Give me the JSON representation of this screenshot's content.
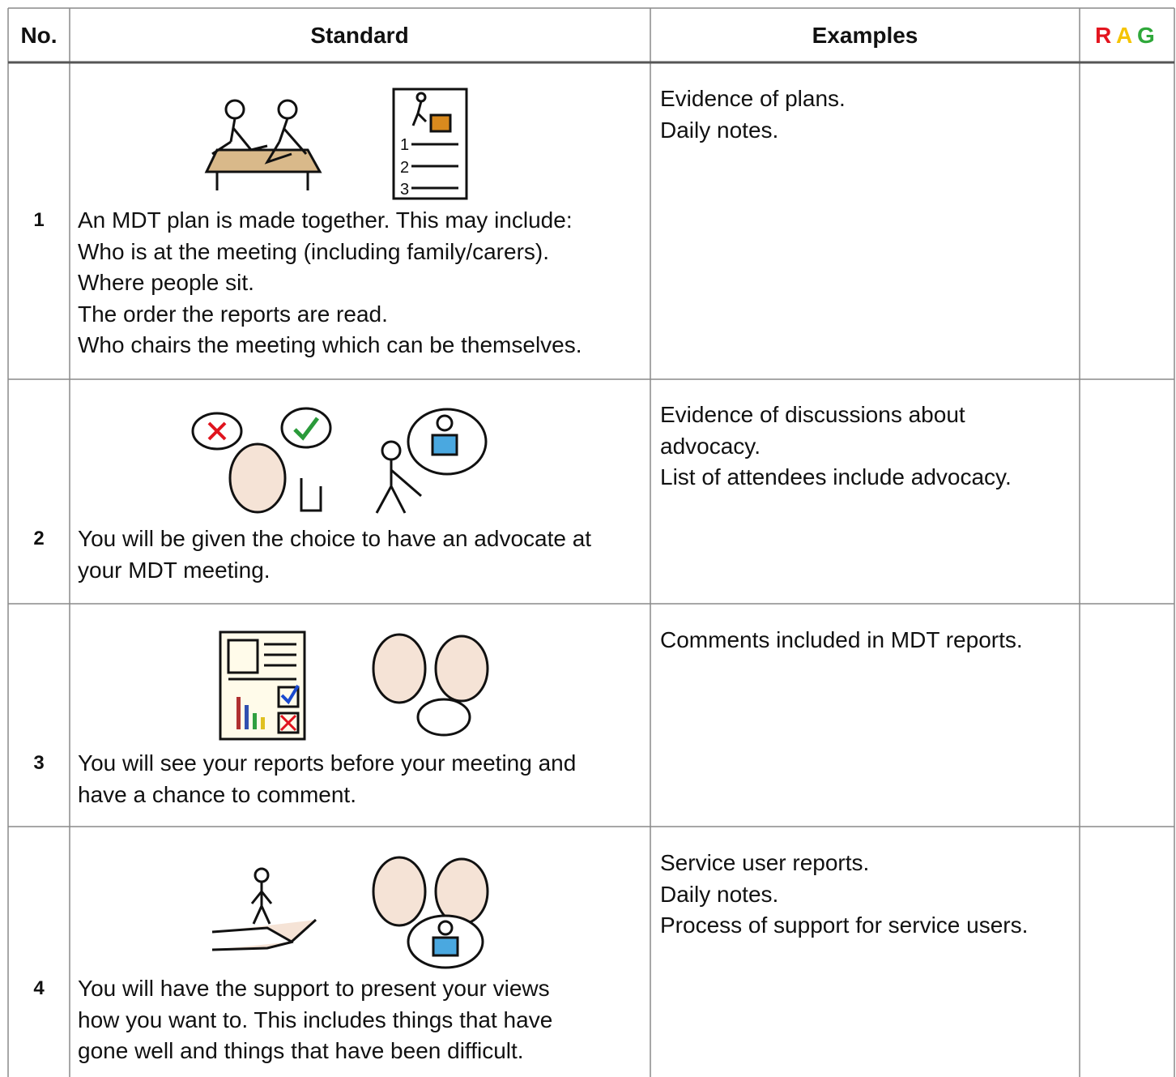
{
  "table": {
    "header": {
      "no": "No.",
      "standard": "Standard",
      "examples": "Examples",
      "rag": [
        "R",
        "A",
        "G"
      ]
    },
    "rows": [
      {
        "no": "1",
        "standard": [
          "An MDT plan is made together. This may include:",
          "Who is at the meeting (including family/carers).",
          "Where people sit.",
          "The order the reports are read.",
          "Who chairs the meeting which can be themselves."
        ],
        "examples": [
          "Evidence of plans.",
          "Daily notes."
        ]
      },
      {
        "no": "2",
        "standard": [
          "You will be given the choice to have an advocate at",
          "your MDT meeting."
        ],
        "examples": [
          "Evidence of discussions about",
          "advocacy.",
          "List of attendees include advocacy."
        ]
      },
      {
        "no": "3",
        "standard": [
          "You will see your reports before your meeting and",
          "have a chance to comment."
        ],
        "examples": [
          "Comments included in MDT reports."
        ]
      },
      {
        "no": "4",
        "standard": [
          "You will have the support to present your views",
          "how you want to. This includes things that have",
          "gone well and things that have been difficult."
        ],
        "examples": [
          "Service user reports.",
          "Daily notes.",
          "Process of support for service users."
        ]
      }
    ]
  }
}
